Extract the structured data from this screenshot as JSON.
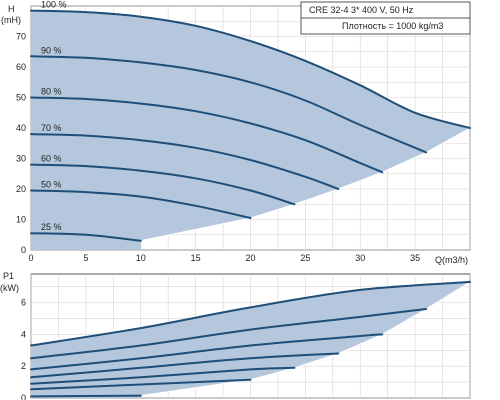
{
  "chart_data": [
    {
      "type": "line",
      "info_lines": [
        "CRE 32-4    3* 400 V, 50 Hz",
        "Плотность = 1000 kg/m3"
      ],
      "ylabel": "H",
      "yunit": "(mH)",
      "xlabel": "Q(m3/h)",
      "xlim": [
        0,
        40
      ],
      "ylim": [
        0,
        80
      ],
      "xticks": [
        0,
        5,
        10,
        15,
        20,
        25,
        30,
        35
      ],
      "yticks": [
        0,
        10,
        20,
        30,
        40,
        50,
        60,
        70
      ],
      "grid": true,
      "region_color": "#b4c7dc",
      "line_color": "#1f4e79",
      "series": [
        {
          "name": "100 %",
          "x": [
            0,
            5,
            10,
            15,
            20,
            25,
            30,
            35,
            40
          ],
          "y": [
            78.5,
            78,
            76.5,
            73.5,
            68.5,
            62,
            54,
            45,
            40
          ]
        },
        {
          "name": "90 %",
          "x": [
            0,
            5,
            10,
            15,
            20,
            25,
            30,
            36
          ],
          "y": [
            63.5,
            63,
            61.5,
            59,
            55,
            49,
            41,
            32
          ]
        },
        {
          "name": "80 %",
          "x": [
            0,
            5,
            10,
            15,
            20,
            25,
            30,
            32
          ],
          "y": [
            50,
            49.5,
            48,
            45.5,
            41.5,
            36,
            28.5,
            25.5
          ]
        },
        {
          "name": "70 %",
          "x": [
            0,
            5,
            10,
            15,
            20,
            25,
            28
          ],
          "y": [
            38,
            37.5,
            36,
            33.5,
            29.5,
            24,
            20
          ]
        },
        {
          "name": "60 %",
          "x": [
            0,
            5,
            10,
            15,
            20,
            24
          ],
          "y": [
            28,
            27.5,
            26,
            23.5,
            19.5,
            15
          ]
        },
        {
          "name": "50 %",
          "x": [
            0,
            5,
            10,
            15,
            20
          ],
          "y": [
            19.5,
            19,
            17.5,
            14.5,
            10.5
          ]
        },
        {
          "name": "25 %",
          "x": [
            0,
            5,
            10
          ],
          "y": [
            5.5,
            5,
            3
          ]
        }
      ]
    },
    {
      "type": "line",
      "ylabel": "P1",
      "yunit": "(kW)",
      "xlim": [
        0,
        40
      ],
      "ylim": [
        0,
        7.8
      ],
      "xticks": [
        0,
        5,
        10,
        15,
        20,
        25,
        30,
        35
      ],
      "yticks": [
        0,
        2,
        4,
        6
      ],
      "grid": true,
      "series": [
        {
          "name": "100 %",
          "x": [
            0,
            10,
            20,
            30,
            40
          ],
          "y": [
            3.3,
            4.4,
            5.7,
            6.8,
            7.3
          ]
        },
        {
          "name": "90 %",
          "x": [
            0,
            10,
            20,
            30,
            36
          ],
          "y": [
            2.5,
            3.3,
            4.3,
            5.1,
            5.6
          ]
        },
        {
          "name": "80 %",
          "x": [
            0,
            10,
            20,
            30,
            32
          ],
          "y": [
            1.8,
            2.5,
            3.3,
            3.9,
            4.0
          ]
        },
        {
          "name": "70 %",
          "x": [
            0,
            10,
            20,
            28
          ],
          "y": [
            1.3,
            1.9,
            2.5,
            2.8
          ]
        },
        {
          "name": "60 %",
          "x": [
            0,
            10,
            20,
            24
          ],
          "y": [
            0.9,
            1.3,
            1.8,
            1.9
          ]
        },
        {
          "name": "50 %",
          "x": [
            0,
            10,
            20
          ],
          "y": [
            0.55,
            0.85,
            1.15
          ]
        },
        {
          "name": "25 %",
          "x": [
            0,
            10
          ],
          "y": [
            0.1,
            0.15
          ]
        }
      ]
    }
  ]
}
